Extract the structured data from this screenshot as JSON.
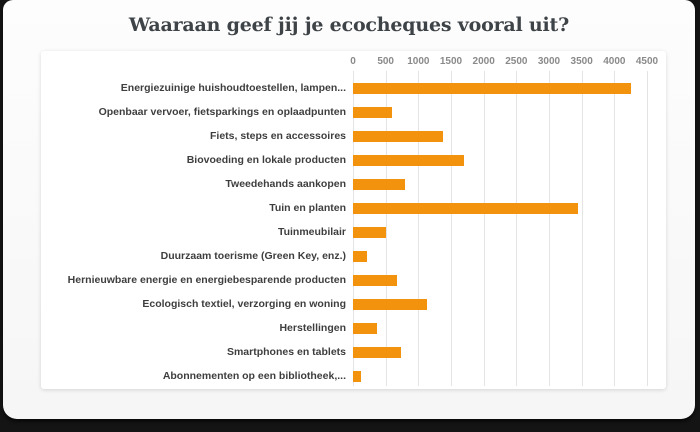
{
  "chart_data": {
    "type": "bar",
    "orientation": "horizontal",
    "title": "Waaraan geef jij je ecocheques vooral uit?",
    "categories": [
      "Energiezuinige huishoudtoestellen, lampen...",
      "Openbaar vervoer, fietsparkings en oplaadpunten",
      "Fiets, steps en accessoires",
      "Biovoeding en lokale producten",
      "Tweedehands aankopen",
      "Tuin en planten",
      "Tuinmeubilair",
      "Duurzaam toerisme (Green Key, enz.)",
      "Hernieuwbare energie en energiebesparende producten",
      "Ecologisch textiel, verzorging en woning",
      "Herstellingen",
      "Smartphones en tablets",
      "Abonnementen op een bibliotheek,..."
    ],
    "values": [
      4250,
      600,
      1370,
      1700,
      790,
      3440,
      510,
      210,
      680,
      1140,
      360,
      730,
      130
    ],
    "x_ticks": [
      0,
      500,
      1000,
      1500,
      2000,
      2500,
      3000,
      3500,
      4000,
      4500
    ],
    "xlim": [
      0,
      4500
    ],
    "xlabel": "",
    "ylabel": "",
    "grid": true,
    "axis_position": "top",
    "legend": "none",
    "bar_color": "#F2920D"
  },
  "colors": {
    "bar": "#F2920D",
    "gridline": "#e4e4e4",
    "title_text": "#3e4347",
    "label_text": "#3e3e3e",
    "tick_text": "#8a8a8a",
    "panel_bg": "#ffffff",
    "card_bg": "#f9f9f9",
    "frame_bg": "#141414"
  }
}
